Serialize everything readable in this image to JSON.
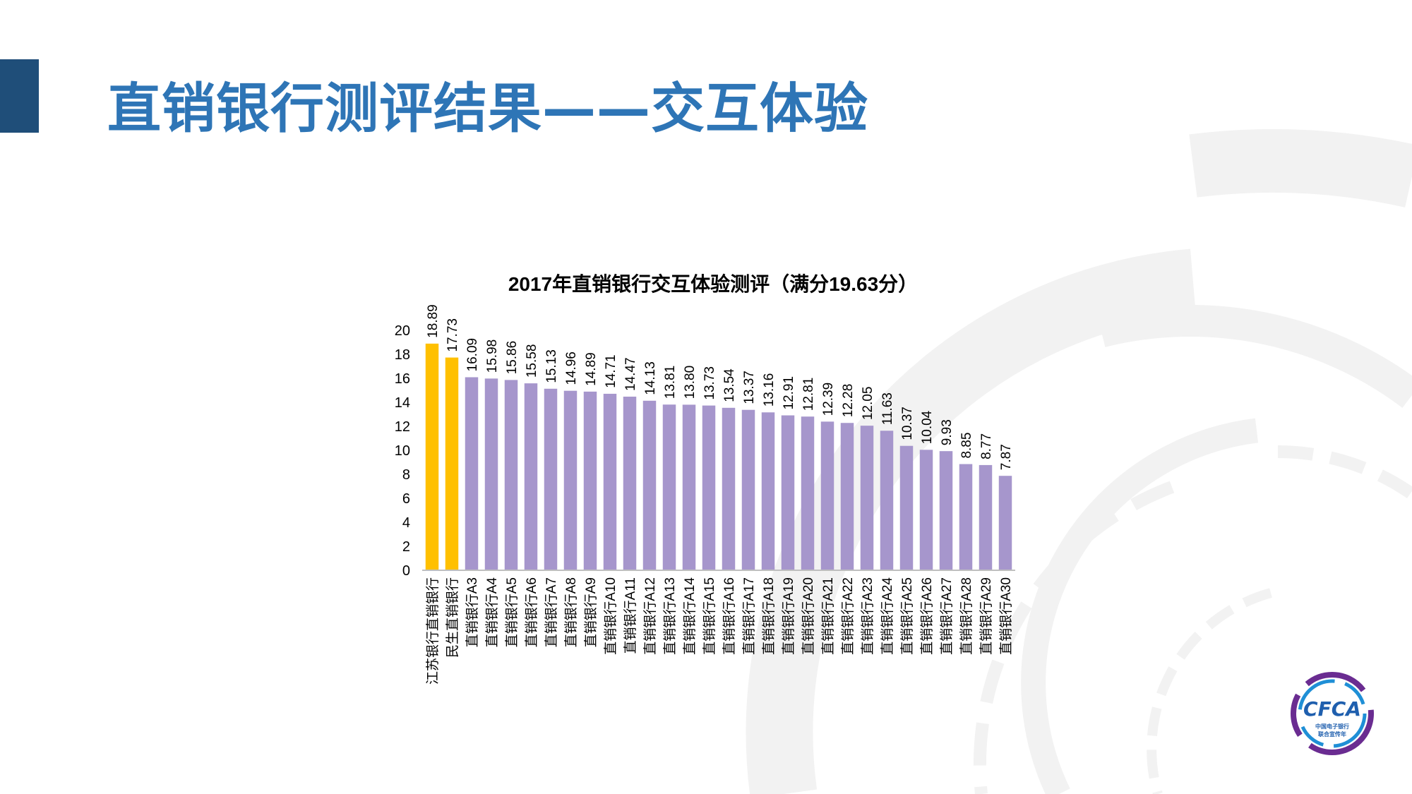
{
  "slide": {
    "title": "直销银行测评结果——交互体验"
  },
  "logo": {
    "mark": "CFCA",
    "line1": "中国电子银行",
    "line2": "联合宣传年"
  },
  "colors": {
    "title": "#2e75b6",
    "accent_bar": "#1f4e79",
    "highlight_bar": "#ffc000",
    "bar": "#a696cc"
  },
  "chart_data": {
    "type": "bar",
    "title": "2017年直销银行交互体验测评（满分19.63分）",
    "xlabel": "",
    "ylabel": "",
    "ylim": [
      0,
      20
    ],
    "yticks": [
      "0",
      "2",
      "4",
      "6",
      "8",
      "10",
      "12",
      "14",
      "16",
      "18",
      "20"
    ],
    "grid": false,
    "categories": [
      "江苏银行直销银行",
      "民生直销银行",
      "直销银行A3",
      "直销银行A4",
      "直销银行A5",
      "直销银行A6",
      "直销银行A7",
      "直销银行A8",
      "直销银行A9",
      "直销银行A10",
      "直销银行A11",
      "直销银行A12",
      "直销银行A13",
      "直销银行A14",
      "直销银行A15",
      "直销银行A16",
      "直销银行A17",
      "直销银行A18",
      "直销银行A19",
      "直销银行A20",
      "直销银行A21",
      "直销银行A22",
      "直销银行A23",
      "直销银行A24",
      "直销银行A25",
      "直销银行A26",
      "直销银行A27",
      "直销银行A28",
      "直销银行A29",
      "直销银行A30"
    ],
    "values": [
      18.89,
      17.73,
      16.09,
      15.98,
      15.86,
      15.58,
      15.13,
      14.96,
      14.89,
      14.71,
      14.47,
      14.13,
      13.81,
      13.8,
      13.73,
      13.54,
      13.37,
      13.16,
      12.91,
      12.81,
      12.39,
      12.28,
      12.05,
      11.63,
      10.37,
      10.04,
      9.93,
      8.85,
      8.77,
      7.87
    ],
    "value_labels": [
      "18.89",
      "17.73",
      "16.09",
      "15.98",
      "15.86",
      "15.58",
      "15.13",
      "14.96",
      "14.89",
      "14.71",
      "14.47",
      "14.13",
      "13.81",
      "13.80",
      "13.73",
      "13.54",
      "13.37",
      "13.16",
      "12.91",
      "12.81",
      "12.39",
      "12.28",
      "12.05",
      "11.63",
      "10.37",
      "10.04",
      "9.93",
      "8.85",
      "8.77",
      "7.87"
    ],
    "highlighted_count": 2
  }
}
